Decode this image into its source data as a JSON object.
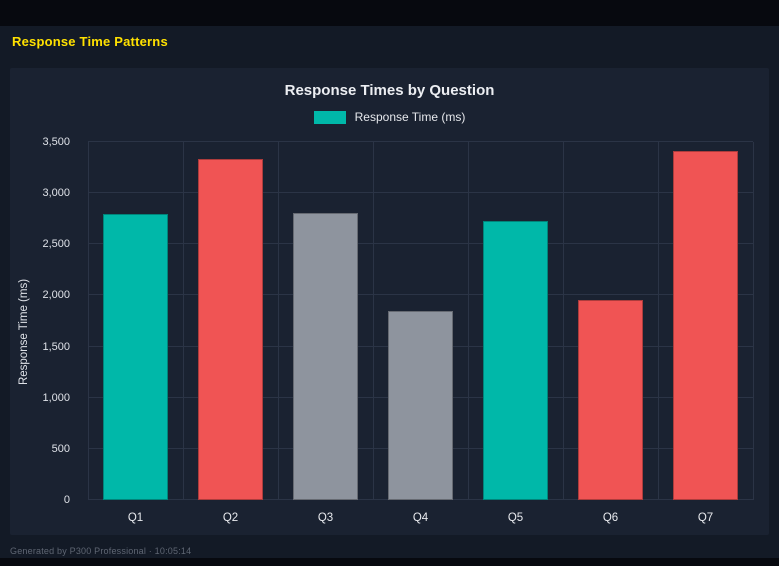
{
  "page": {
    "header_title": "Response Time Patterns",
    "header_color": "#ffe100",
    "footer": "Generated by P300 Professional · 10:05:14"
  },
  "chart_data": {
    "type": "bar",
    "title": "Response Times by Question",
    "legend": [
      {
        "label": "Response Time (ms)",
        "color": "#00b8a9"
      }
    ],
    "legend_position": "top",
    "categories": [
      "Q1",
      "Q2",
      "Q3",
      "Q4",
      "Q5",
      "Q6",
      "Q7"
    ],
    "values": [
      2800,
      3330,
      2810,
      1850,
      2730,
      1960,
      3410
    ],
    "bar_colors": [
      "#00b8a9",
      "#f05454",
      "#8e949e",
      "#8e949e",
      "#00b8a9",
      "#f05454",
      "#f05454"
    ],
    "xlabel": "",
    "ylabel": "Response Time (ms)",
    "ylim": [
      0,
      3500
    ],
    "yticks": [
      0,
      500,
      1000,
      1500,
      2000,
      2500,
      3000,
      3500
    ],
    "ytick_labels": [
      "0",
      "500",
      "1,000",
      "1,500",
      "2,000",
      "2,500",
      "3,000",
      "3,500"
    ],
    "grid": true,
    "background": "#1a2231",
    "grid_color": "#2b3446"
  }
}
